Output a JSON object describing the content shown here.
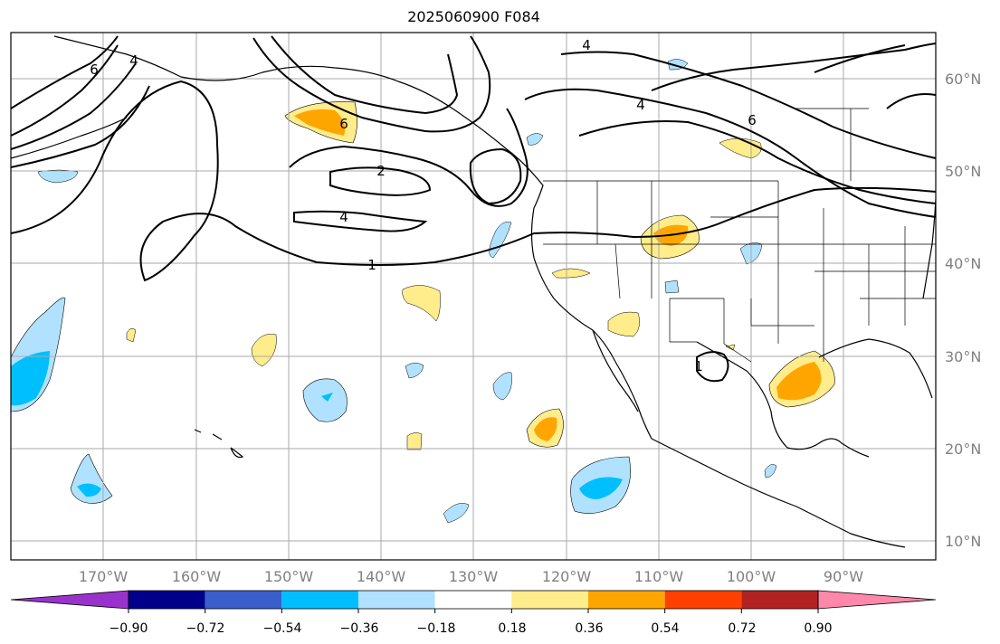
{
  "title": "2025060900 F084",
  "map": {
    "lon_labels": [
      "170°W",
      "160°W",
      "150°W",
      "140°W",
      "130°W",
      "120°W",
      "110°W",
      "100°W",
      "90°W"
    ],
    "lat_labels": [
      "60°N",
      "50°N",
      "40°N",
      "30°N",
      "20°N",
      "10°N"
    ],
    "contour_labels": [
      "6",
      "4",
      "4",
      "6",
      "2",
      "4",
      "1",
      "4",
      "6",
      "1"
    ]
  },
  "colorbar": {
    "ticks": [
      "−0.90",
      "−0.72",
      "−0.54",
      "−0.36",
      "−0.18",
      "0.18",
      "0.36",
      "0.54",
      "0.72",
      "0.90"
    ],
    "colors": [
      "#9932cc",
      "#00008b",
      "#3a5fcd",
      "#00bfff",
      "#b0e2ff",
      "#ffffff",
      "#ffec8b",
      "#ffa500",
      "#ff4000",
      "#b22222",
      "#ff88aa"
    ]
  },
  "colors": {
    "grid": "#aaaaaa",
    "coast": "#000000",
    "contour": "#000000",
    "light_blue": "#b0e2ff",
    "blue": "#00bfff",
    "yellow": "#ffec8b",
    "orange": "#ffa500"
  }
}
